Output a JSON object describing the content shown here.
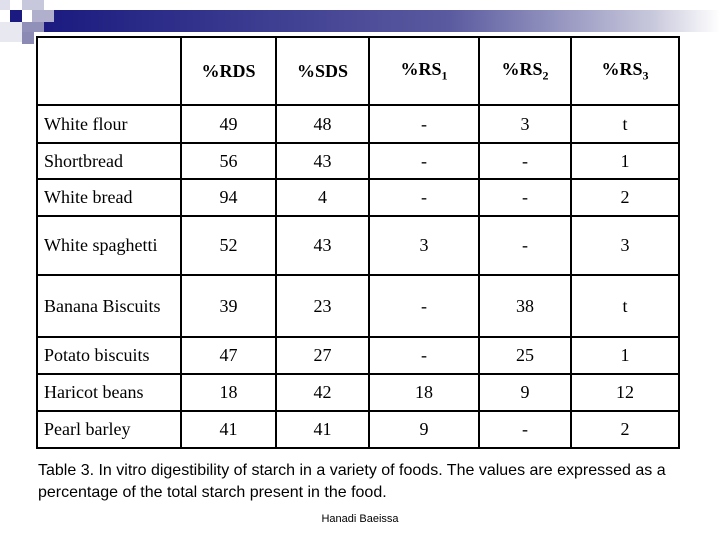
{
  "decoration": {
    "accent": "#1a1a80",
    "icon": "squares-logo"
  },
  "table": {
    "headers": [
      "",
      "%RDS",
      "%SDS",
      "%RS",
      "%RS",
      "%RS"
    ],
    "header_subscripts": [
      "",
      "",
      "",
      "1",
      "2",
      "3"
    ],
    "rows": [
      [
        "White flour",
        "49",
        "48",
        "-",
        "3",
        "t"
      ],
      [
        "Shortbread",
        "56",
        "43",
        "-",
        "-",
        "1"
      ],
      [
        "White bread",
        "94",
        "4",
        "-",
        "-",
        "2"
      ],
      [
        "White spaghetti",
        "52",
        "43",
        "3",
        "-",
        "3"
      ],
      [
        "Banana Biscuits",
        "39",
        "23",
        "-",
        "38",
        "t"
      ],
      [
        "Potato biscuits",
        "47",
        "27",
        "-",
        "25",
        "1"
      ],
      [
        "Haricot beans",
        "18",
        "42",
        "18",
        "9",
        "12"
      ],
      [
        "Pearl barley",
        "41",
        "41",
        "9",
        "-",
        "2"
      ]
    ]
  },
  "caption": "Table 3. In vitro digestibility of starch in a variety of foods. The values are expressed as a percentage of the total starch present in the food.",
  "author": "Hanadi Baeissa"
}
